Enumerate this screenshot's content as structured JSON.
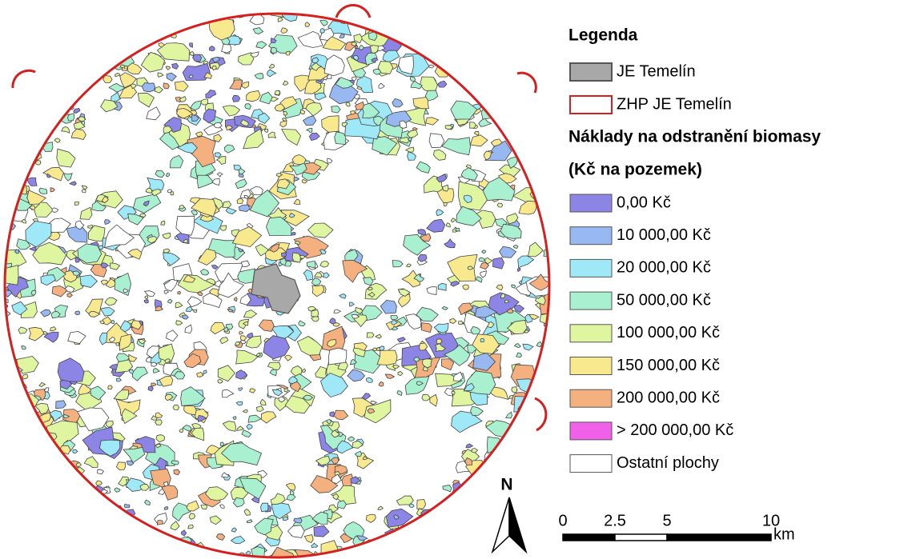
{
  "legend": {
    "title": "Legenda",
    "items": [
      {
        "label": "JE Temelín",
        "color": "#a8a8a8",
        "border": "#555555"
      },
      {
        "label": "ZHP JE Temelín",
        "color": "#ffffff",
        "border": "#d42020"
      }
    ],
    "cost_title": "Náklady na odstranění biomasy",
    "cost_subtitle": "(Kč na pozemek)",
    "classes": [
      {
        "label": "0,00 Kč",
        "color": "#8c85e6"
      },
      {
        "label": "10 000,00 Kč",
        "color": "#97b8f0"
      },
      {
        "label": "20 000,00 Kč",
        "color": "#9ee8f7"
      },
      {
        "label": "50 000,00 Kč",
        "color": "#a8f0d0"
      },
      {
        "label": "100 000,00 Kč",
        "color": "#dff5a0"
      },
      {
        "label": "150 000,00 Kč",
        "color": "#f8e88e"
      },
      {
        "label": "200 000,00 Kč",
        "color": "#f5b080"
      },
      {
        "label": "> 200 000,00 Kč",
        "color": "#f060e8"
      },
      {
        "label": "Ostatní plochy",
        "color": "#ffffff"
      }
    ]
  },
  "north_arrow": {
    "label": "N"
  },
  "scale_bar": {
    "ticks": [
      0,
      2.5,
      5,
      10
    ],
    "unit": "km"
  }
}
